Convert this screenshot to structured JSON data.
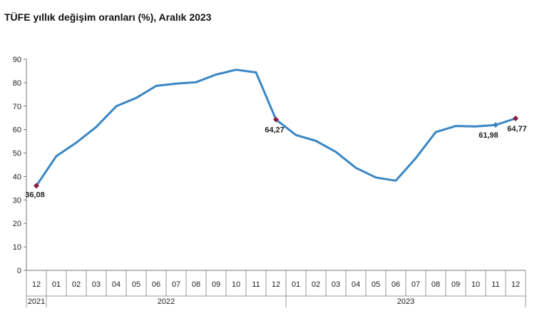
{
  "title": "TÜFE yıllık değişim oranları (%), Aralık 2023",
  "chart_data": {
    "type": "line",
    "title": "TÜFE yıllık değişim oranları (%), Aralık 2023",
    "xlabel": "",
    "ylabel": "",
    "ylim": [
      0,
      90
    ],
    "yticks": [
      0,
      10,
      20,
      30,
      40,
      50,
      60,
      70,
      80,
      90
    ],
    "grid": false,
    "categories": [
      "12",
      "01",
      "02",
      "03",
      "04",
      "05",
      "06",
      "07",
      "08",
      "09",
      "10",
      "11",
      "12",
      "01",
      "02",
      "03",
      "04",
      "05",
      "06",
      "07",
      "08",
      "09",
      "10",
      "11",
      "12"
    ],
    "year_groups": [
      {
        "label": "2021",
        "start": 0,
        "end": 0
      },
      {
        "label": "2022",
        "start": 1,
        "end": 12
      },
      {
        "label": "2023",
        "start": 13,
        "end": 24
      }
    ],
    "series": [
      {
        "color": "#3a86c4",
        "values": [
          36.08,
          48.69,
          54.44,
          61.14,
          69.97,
          73.5,
          78.62,
          79.6,
          80.21,
          83.45,
          85.51,
          84.39,
          64.27,
          57.68,
          55.18,
          50.51,
          43.68,
          39.59,
          38.21,
          47.83,
          58.94,
          61.53,
          61.36,
          61.98,
          64.77
        ]
      }
    ],
    "annotations": [
      {
        "index": 0,
        "text": "36,08",
        "marker_color": "#8b1c3c"
      },
      {
        "index": 12,
        "text": "64,27",
        "marker_color": "#8b1c3c"
      },
      {
        "index": 23,
        "text": "61,98",
        "marker_color": "#3a86c4"
      },
      {
        "index": 24,
        "text": "64,77",
        "marker_color": "#8b1c3c"
      }
    ]
  }
}
